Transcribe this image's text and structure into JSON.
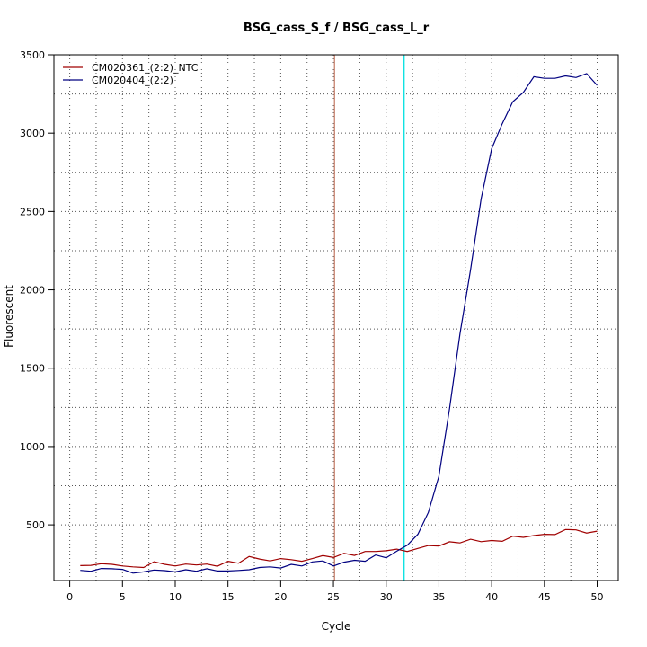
{
  "chart_data": {
    "type": "line",
    "title": "BSG_cass_S_f / BSG_cass_L_r",
    "xlabel": "Cycle",
    "ylabel": "Fluorescent",
    "xlim": [
      -1.5,
      52
    ],
    "ylim": [
      145,
      3500
    ],
    "x_ticks": [
      0,
      5,
      10,
      15,
      20,
      25,
      30,
      35,
      40,
      45,
      50
    ],
    "y_ticks": [
      500,
      1000,
      1500,
      2000,
      2500,
      3000,
      3500
    ],
    "grid": "dotted",
    "legend_position": "top-left",
    "vlines": [
      {
        "x": 25.1,
        "color": "#c8826e"
      },
      {
        "x": 31.7,
        "color": "#00e0e0"
      }
    ],
    "series": [
      {
        "name": "CM020361_(2:2)_NTC",
        "color": "#a00000",
        "x": [
          1,
          2,
          3,
          4,
          5,
          6,
          7,
          8,
          9,
          10,
          11,
          12,
          13,
          14,
          15,
          16,
          17,
          18,
          19,
          20,
          21,
          22,
          23,
          24,
          25,
          26,
          27,
          28,
          29,
          30,
          31,
          32,
          33,
          34,
          35,
          36,
          37,
          38,
          39,
          40,
          41,
          42,
          43,
          44,
          45,
          46,
          47,
          48,
          49,
          50
        ],
        "y": [
          240,
          242,
          252,
          248,
          238,
          232,
          228,
          265,
          248,
          238,
          250,
          244,
          250,
          236,
          268,
          255,
          298,
          282,
          270,
          285,
          278,
          268,
          285,
          304,
          292,
          318,
          305,
          330,
          330,
          335,
          345,
          330,
          350,
          368,
          365,
          392,
          385,
          408,
          393,
          400,
          395,
          428,
          420,
          432,
          440,
          438,
          470,
          468,
          448,
          460
        ]
      },
      {
        "name": "CM020404_(2:2)",
        "color": "#000080",
        "x": [
          1,
          2,
          3,
          4,
          5,
          6,
          7,
          8,
          9,
          10,
          11,
          12,
          13,
          14,
          15,
          16,
          17,
          18,
          19,
          20,
          21,
          22,
          23,
          24,
          25,
          26,
          27,
          28,
          29,
          30,
          31,
          32,
          33,
          34,
          35,
          36,
          37,
          38,
          39,
          40,
          41,
          42,
          43,
          44,
          45,
          46,
          47,
          48,
          49,
          50
        ],
        "y": [
          210,
          204,
          222,
          220,
          216,
          192,
          200,
          212,
          208,
          200,
          214,
          204,
          220,
          206,
          206,
          209,
          214,
          228,
          232,
          225,
          248,
          238,
          264,
          270,
          238,
          262,
          274,
          268,
          308,
          290,
          332,
          370,
          440,
          580,
          810,
          1240,
          1720,
          2130,
          2580,
          2900,
          3060,
          3200,
          3260,
          3360,
          3350,
          3350,
          3365,
          3355,
          3380,
          3305
        ]
      }
    ]
  }
}
